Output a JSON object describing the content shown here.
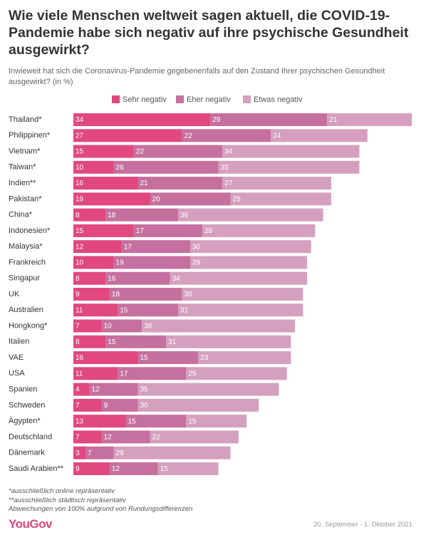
{
  "chart_data": {
    "type": "stacked-bar-horizontal",
    "title": "Wie viele Menschen weltweit sagen aktuell, die COVID-19-Pandemie habe sich negativ auf ihre psychische Gesundheit ausgewirkt?",
    "subtitle": "Inwieweit hat sich die Coronavirus-Pandemie gegebenenfalls auf den Zustand Ihrer psychischen Gesundheit ausgewirkt? (in %)",
    "categories": [
      "Thailand*",
      "Philippinen*",
      "Vietnam*",
      "Taiwan*",
      "Indien**",
      "Pakistan*",
      "China*",
      "Indonesien*",
      "Malaysia*",
      "Frankreich",
      "Singapur",
      "UK",
      "Australien",
      "Hongkong*",
      "Italien",
      "VAE",
      "USA",
      "Spanien",
      "Schweden",
      "Ägypten*",
      "Deutschland",
      "Dänemark",
      "Saudi Arabien**"
    ],
    "series": [
      {
        "name": "Sehr negativ",
        "color": "#e0487f",
        "values": [
          34,
          27,
          15,
          10,
          16,
          19,
          8,
          15,
          12,
          10,
          8,
          9,
          11,
          7,
          8,
          16,
          11,
          4,
          7,
          13,
          7,
          3,
          9
        ]
      },
      {
        "name": "Eher negativ",
        "color": "#c6709f",
        "values": [
          29,
          22,
          22,
          26,
          21,
          20,
          18,
          17,
          17,
          19,
          16,
          18,
          15,
          10,
          15,
          15,
          17,
          12,
          9,
          15,
          12,
          7,
          12
        ]
      },
      {
        "name": "Etwas negativ",
        "color": "#d5a0bd",
        "values": [
          21,
          24,
          34,
          35,
          27,
          25,
          36,
          28,
          30,
          29,
          34,
          30,
          31,
          38,
          31,
          23,
          25,
          35,
          30,
          15,
          22,
          29,
          15
        ]
      }
    ],
    "notes": [
      "*ausschließlich online repräsentativ",
      "**ausschließlich städtisch repräsentativ",
      "Abweichungen von 100% aufgrund von Rundungsdifferenzen"
    ],
    "logo": "YouGov",
    "date": "20. September - 1. Oktober 2021"
  }
}
